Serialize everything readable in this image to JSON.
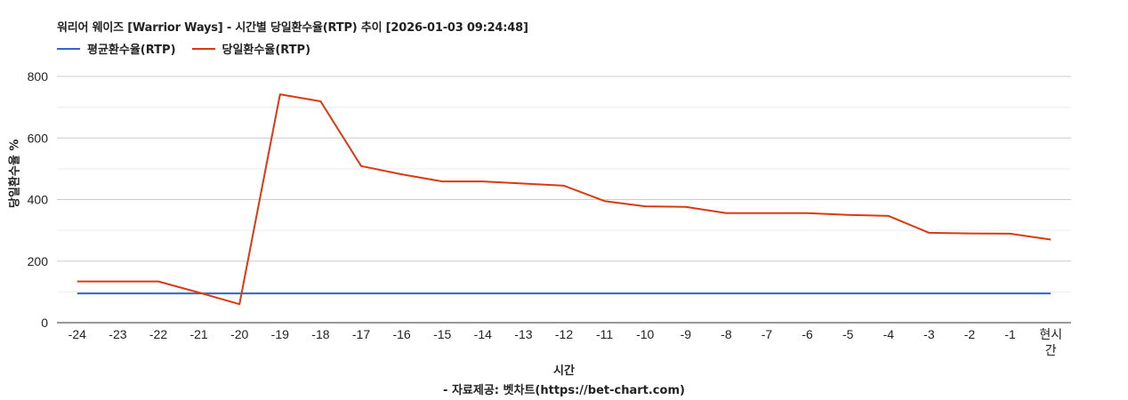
{
  "chart_data": {
    "type": "line",
    "title": "워리어 웨이즈 [Warrior Ways] - 시간별 당일환수율(RTP) 추이 [2026-01-03 09:24:48]",
    "xlabel": "시간",
    "ylabel": "당일환수율 %",
    "source": "- 자료제공: 벳차트(https://bet-chart.com)",
    "categories": [
      "-24",
      "-23",
      "-22",
      "-21",
      "-20",
      "-19",
      "-18",
      "-17",
      "-16",
      "-15",
      "-14",
      "-13",
      "-12",
      "-11",
      "-10",
      "-9",
      "-8",
      "-7",
      "-6",
      "-5",
      "-4",
      "-3",
      "-2",
      "-1",
      "현시간"
    ],
    "series": [
      {
        "name": "평균환수율(RTP)",
        "color": "#3366cc",
        "values": [
          95,
          95,
          95,
          95,
          95,
          95,
          95,
          95,
          95,
          95,
          95,
          95,
          95,
          95,
          95,
          95,
          95,
          95,
          95,
          95,
          95,
          95,
          95,
          95,
          95
        ]
      },
      {
        "name": "당일환수율(RTP)",
        "color": "#dc3912",
        "values": [
          134,
          134,
          134,
          98,
          60,
          742,
          719,
          509,
          482,
          459,
          459,
          452,
          445,
          395,
          378,
          376,
          356,
          356,
          356,
          350,
          347,
          292,
          290,
          289,
          270
        ]
      }
    ],
    "ylim": [
      0,
      800
    ],
    "yticks": [
      0,
      200,
      400,
      600,
      800
    ],
    "minor_gridlines": [
      100,
      300,
      500,
      700
    ],
    "grid": true,
    "legend_position": "top-left"
  },
  "header": {
    "title": "워리어 웨이즈 [Warrior Ways] - 시간별 당일환수율(RTP) 추이 [2026-01-03 09:24:48]"
  },
  "legend": [
    {
      "label": "평균환수율(RTP)",
      "color": "#3366cc"
    },
    {
      "label": "당일환수율(RTP)",
      "color": "#dc3912"
    }
  ],
  "axes": {
    "xlabel": "시간",
    "ylabel": "당일환수율 %"
  },
  "footer": {
    "source": "- 자료제공: 벳차트(https://bet-chart.com)"
  }
}
